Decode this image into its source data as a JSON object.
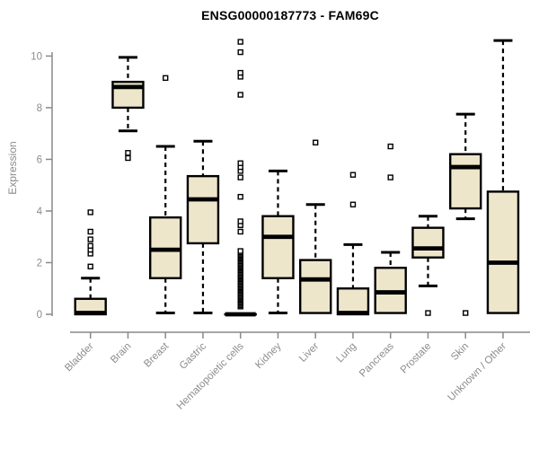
{
  "chart_data": {
    "type": "boxplot",
    "title": "ENSG00000187773 - FAM69C",
    "ylabel": "Expression",
    "xlabel": "",
    "ylim": [
      0,
      10.95
    ],
    "yticks": [
      0,
      2,
      4,
      6,
      8,
      10
    ],
    "grid": false,
    "legend_position": "none",
    "colors": {
      "box_fill": "#EDE6CB",
      "box_stroke": "#000000",
      "axis": "#898989",
      "tick_text": "#8C8C8C",
      "title": "#000000",
      "background": "#FFFFFF"
    },
    "categories": [
      "Bladder",
      "Brain",
      "Breast",
      "Gastric",
      "Hematopoietic cells",
      "Kidney",
      "Liver",
      "Lung",
      "Pancreas",
      "Prostate",
      "Skin",
      "Unknown / Other"
    ],
    "series": [
      {
        "name": "Bladder",
        "low": 0,
        "q1": 0,
        "median": 0.05,
        "q3": 0.6,
        "high": 1.4,
        "outliers": [
          1.85,
          2.35,
          2.5,
          2.65,
          2.9,
          3.2,
          3.95
        ]
      },
      {
        "name": "Brain",
        "low": 7.1,
        "q1": 8.0,
        "median": 8.8,
        "q3": 9.0,
        "high": 9.95,
        "outliers": [
          6.05,
          6.25
        ]
      },
      {
        "name": "Breast",
        "low": 0.05,
        "q1": 1.4,
        "median": 2.5,
        "q3": 3.75,
        "high": 6.5,
        "outliers": [
          9.15
        ]
      },
      {
        "name": "Gastric",
        "low": 0.05,
        "q1": 2.75,
        "median": 4.45,
        "q3": 5.35,
        "high": 6.7,
        "outliers": []
      },
      {
        "name": "Hematopoietic cells",
        "low": 0,
        "q1": 0,
        "median": 0,
        "q3": 0,
        "high": 0,
        "outliers": [
          3.2,
          3.45,
          3.6,
          4.55,
          5.3,
          5.55,
          5.7,
          5.85,
          8.5,
          9.2,
          9.35,
          10.15,
          10.55
        ],
        "outlier_column": {
          "min": 0.3,
          "max": 2.45,
          "step": 0.05
        }
      },
      {
        "name": "Kidney",
        "low": 0.05,
        "q1": 1.4,
        "median": 3.0,
        "q3": 3.8,
        "high": 5.55,
        "outliers": []
      },
      {
        "name": "Liver",
        "low": 0.05,
        "q1": 0.05,
        "median": 1.35,
        "q3": 2.1,
        "high": 4.25,
        "outliers": [
          6.65
        ]
      },
      {
        "name": "Lung",
        "low": 0,
        "q1": 0,
        "median": 0.05,
        "q3": 1.0,
        "high": 2.7,
        "outliers": [
          4.25,
          5.4
        ]
      },
      {
        "name": "Pancreas",
        "low": 0.05,
        "q1": 0.05,
        "median": 0.85,
        "q3": 1.8,
        "high": 2.4,
        "outliers": [
          5.3,
          6.5
        ]
      },
      {
        "name": "Prostate",
        "low": 1.1,
        "q1": 2.2,
        "median": 2.55,
        "q3": 3.35,
        "high": 3.8,
        "outliers": [
          0.05
        ]
      },
      {
        "name": "Skin",
        "low": 3.7,
        "q1": 4.1,
        "median": 5.7,
        "q3": 6.2,
        "high": 7.75,
        "outliers": [
          0.05
        ]
      },
      {
        "name": "Unknown / Other",
        "low": 0.05,
        "q1": 0.05,
        "median": 2.0,
        "q3": 4.75,
        "high": 10.6,
        "outliers": []
      }
    ]
  }
}
